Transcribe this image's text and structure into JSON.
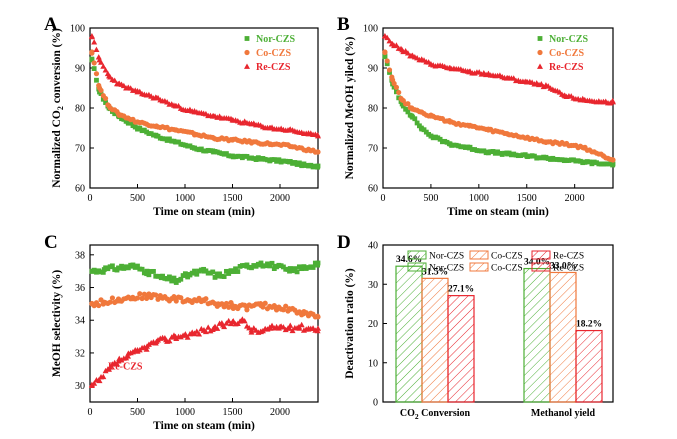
{
  "colors": {
    "nor": "#4caf35",
    "co": "#f0783c",
    "re": "#e8262e"
  },
  "chart_data": [
    {
      "panel": "A",
      "type": "scatter",
      "xlabel": "Time on steam (min)",
      "ylabel_pre": "Normalized CO",
      "ylabel_sub": "2",
      "ylabel_post": " conversion (%)",
      "xlim": [
        0,
        2400
      ],
      "ylim": [
        60,
        100
      ],
      "xticks": [
        "0",
        "500",
        "1000",
        "1500",
        "2000"
      ],
      "xtick_vals": [
        0,
        500,
        1000,
        1500,
        2000
      ],
      "yticks": [
        "60",
        "70",
        "80",
        "90",
        "100"
      ],
      "ytick_vals": [
        60,
        70,
        80,
        90,
        100
      ],
      "legend": [
        "Nor-CZS",
        "Co-CZS",
        "Re-CZS"
      ],
      "series": [
        {
          "name": "Nor-CZS",
          "marker": "square",
          "x": [
            20,
            100,
            200,
            300,
            400,
            500,
            700,
            900,
            1100,
            1300,
            1500,
            1700,
            1900,
            2100,
            2300,
            2400
          ],
          "y": [
            92,
            84,
            80,
            78,
            76.5,
            75,
            73,
            71.5,
            70,
            69,
            68,
            67.5,
            67,
            66.5,
            65.5,
            65.5
          ]
        },
        {
          "name": "Co-CZS",
          "marker": "circle",
          "x": [
            20,
            100,
            200,
            300,
            400,
            500,
            700,
            900,
            1100,
            1300,
            1500,
            1700,
            1900,
            2100,
            2300,
            2400
          ],
          "y": [
            94,
            85,
            80.5,
            78.5,
            77.5,
            76.5,
            75.5,
            74.5,
            73.5,
            72.5,
            72,
            71.5,
            71,
            70.5,
            69.5,
            69
          ]
        },
        {
          "name": "Re-CZS",
          "marker": "triangle",
          "x": [
            20,
            100,
            200,
            300,
            400,
            500,
            700,
            900,
            1100,
            1300,
            1500,
            1700,
            1900,
            2100,
            2300,
            2400
          ],
          "y": [
            98,
            92,
            88,
            86,
            85,
            84,
            82.5,
            80.5,
            79,
            78,
            77,
            76,
            75,
            74.5,
            73.5,
            73
          ]
        }
      ]
    },
    {
      "panel": "B",
      "type": "scatter",
      "xlabel": "Time on steam (min)",
      "ylabel": "Normalized MeOH yiled (%)",
      "xlim": [
        0,
        2400
      ],
      "ylim": [
        60,
        100
      ],
      "xticks": [
        "0",
        "500",
        "1000",
        "1500",
        "2000"
      ],
      "xtick_vals": [
        0,
        500,
        1000,
        1500,
        2000
      ],
      "yticks": [
        "60",
        "70",
        "80",
        "90",
        "100"
      ],
      "ytick_vals": [
        60,
        70,
        80,
        90,
        100
      ],
      "legend": [
        "Nor-CZS",
        "Co-CZS",
        "Re-CZS"
      ],
      "series": [
        {
          "name": "Nor-CZS",
          "marker": "square",
          "x": [
            20,
            100,
            200,
            300,
            400,
            500,
            700,
            900,
            1100,
            1300,
            1500,
            1700,
            1900,
            2100,
            2300,
            2400
          ],
          "y": [
            93,
            86,
            81,
            78,
            75,
            73,
            71,
            70,
            69,
            68.5,
            68,
            67.5,
            67,
            66.5,
            66,
            66
          ]
        },
        {
          "name": "Co-CZS",
          "marker": "circle",
          "x": [
            20,
            100,
            200,
            300,
            400,
            500,
            700,
            900,
            1100,
            1300,
            1500,
            1700,
            1900,
            2100,
            2300,
            2400
          ],
          "y": [
            94,
            87,
            82,
            80,
            79,
            78,
            76.5,
            75.5,
            74.5,
            73.5,
            72.5,
            71.5,
            71,
            70,
            68,
            67
          ]
        },
        {
          "name": "Re-CZS",
          "marker": "triangle",
          "x": [
            20,
            100,
            200,
            300,
            400,
            500,
            700,
            900,
            1100,
            1300,
            1500,
            1700,
            1900,
            2100,
            2300,
            2400
          ],
          "y": [
            98,
            96,
            94.5,
            93,
            92,
            91,
            90,
            89,
            88.5,
            87.5,
            86.5,
            85.5,
            83,
            82,
            81.5,
            81.5
          ]
        }
      ]
    },
    {
      "panel": "C",
      "type": "scatter",
      "xlabel": "Time on steam (min)",
      "ylabel": "MeOH selectivity (%)",
      "xlim": [
        0,
        2400
      ],
      "ylim": [
        29,
        38.6
      ],
      "xticks": [
        "0",
        "500",
        "1000",
        "1500",
        "2000"
      ],
      "xtick_vals": [
        0,
        500,
        1000,
        1500,
        2000
      ],
      "yticks": [
        "30",
        "32",
        "34",
        "36",
        "38"
      ],
      "ytick_vals": [
        30,
        32,
        34,
        36,
        38
      ],
      "annotation": "Re-CZS",
      "series": [
        {
          "name": "Nor-CZS",
          "marker": "square",
          "x": [
            20,
            150,
            300,
            450,
            600,
            750,
            900,
            1050,
            1200,
            1350,
            1500,
            1650,
            1800,
            1950,
            2100,
            2250,
            2400
          ],
          "y": [
            37,
            37.1,
            37.2,
            37.3,
            37,
            36.6,
            36.4,
            36.8,
            37,
            36.7,
            37,
            37.3,
            37.5,
            37.3,
            37,
            37.2,
            37.5
          ]
        },
        {
          "name": "Co-CZS",
          "marker": "circle",
          "x": [
            20,
            150,
            300,
            450,
            600,
            750,
            900,
            1050,
            1200,
            1350,
            1500,
            1650,
            1800,
            1950,
            2100,
            2250,
            2400
          ],
          "y": [
            35,
            35.1,
            35.3,
            35.4,
            35.5,
            35.4,
            35.3,
            35.2,
            35.2,
            35.0,
            34.9,
            34.8,
            34.9,
            34.8,
            34.7,
            34.4,
            34.2
          ]
        },
        {
          "name": "Re-CZS",
          "marker": "triangle",
          "x": [
            20,
            100,
            200,
            300,
            400,
            500,
            600,
            700,
            800,
            900,
            1000,
            1100,
            1200,
            1300,
            1400,
            1500,
            1600,
            1700,
            1800,
            1900,
            2000,
            2100,
            2200,
            2300,
            2400
          ],
          "y": [
            30,
            30.3,
            31,
            31.5,
            31.8,
            32.1,
            32.4,
            32.7,
            32.8,
            33,
            33.1,
            33.2,
            33.4,
            33.5,
            33.7,
            33.9,
            34,
            33.4,
            33.3,
            33.5,
            33.6,
            33.5,
            33.6,
            33.5,
            33.5
          ]
        }
      ]
    },
    {
      "panel": "D",
      "type": "bar",
      "ylabel": "Deactivation ratio (%)",
      "ylim": [
        0,
        40
      ],
      "yticks": [
        "0",
        "10",
        "20",
        "30",
        "40"
      ],
      "ytick_vals": [
        0,
        10,
        20,
        30,
        40
      ],
      "categories_pre": [
        "CO",
        "Methanol yield"
      ],
      "categories_sub": [
        "2",
        ""
      ],
      "categories_post": [
        " Conversion",
        ""
      ],
      "legend_rows": [
        [
          "Nor-CZS",
          "Co-CZS",
          "Re-CZS"
        ],
        [
          "Nor-CZS",
          "Co-CZS",
          "Re-CZS"
        ]
      ],
      "series": [
        {
          "name": "Nor-CZS",
          "values": [
            34.6,
            34.0
          ],
          "labels": [
            "34.6%",
            "34.0%"
          ]
        },
        {
          "name": "Co-CZS",
          "values": [
            31.5,
            33.0
          ],
          "labels": [
            "31.5%",
            "33.0%"
          ]
        },
        {
          "name": "Re-CZS",
          "values": [
            27.1,
            18.2
          ],
          "labels": [
            "27.1%",
            "18.2%"
          ]
        }
      ]
    }
  ]
}
